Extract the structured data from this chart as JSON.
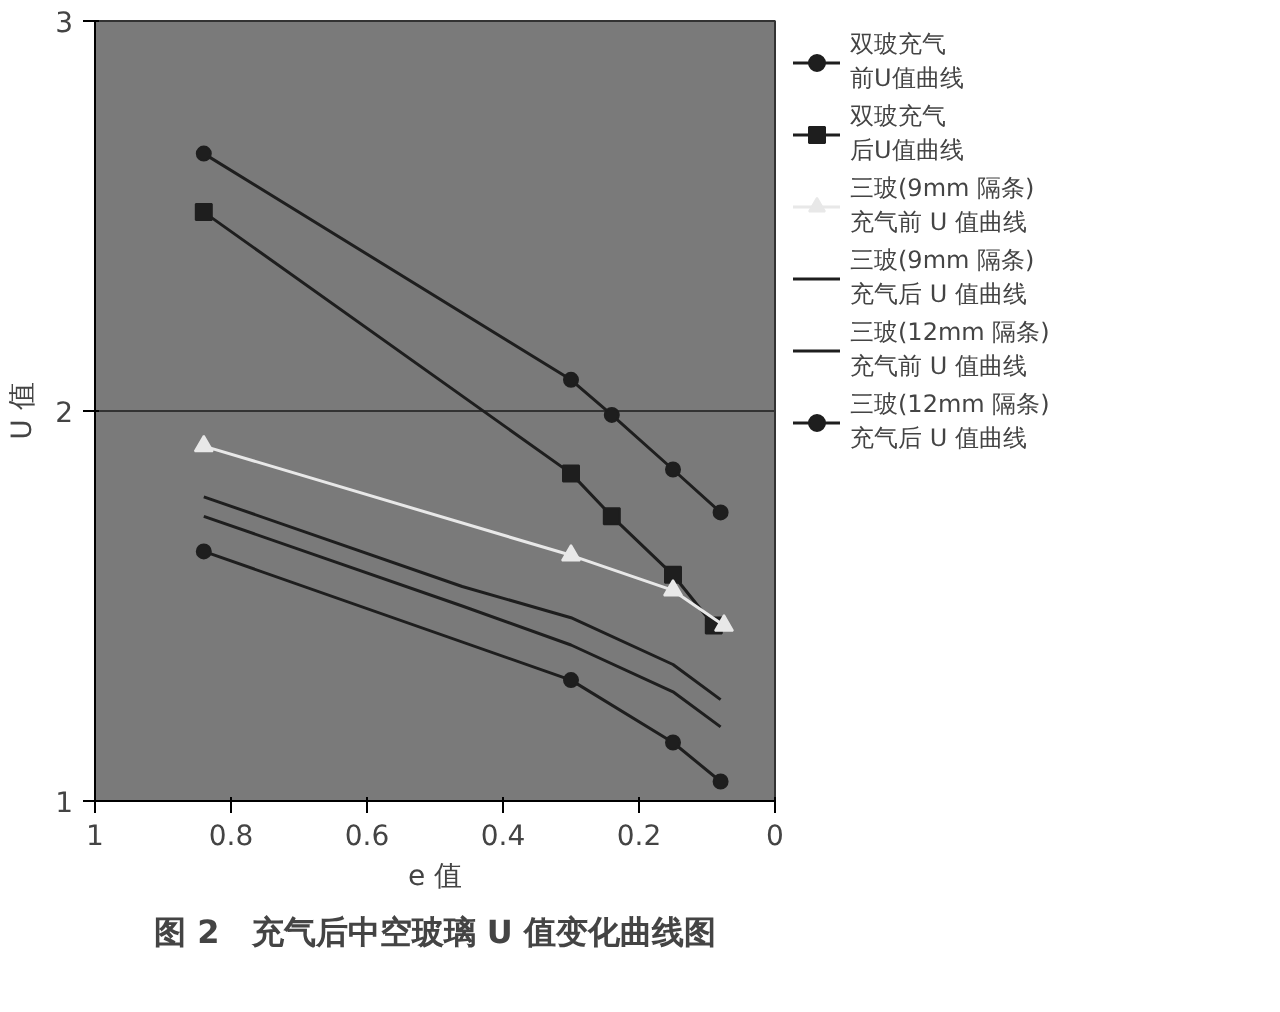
{
  "chart_data": {
    "type": "line",
    "title": "图 2　充气后中空玻璃 U 值变化曲线图",
    "xlabel": "e 值",
    "ylabel": "U 值",
    "xlim": [
      1,
      0
    ],
    "xticks": [
      1,
      0.8,
      0.6,
      0.4,
      0.2,
      0
    ],
    "ylim": [
      1,
      3
    ],
    "yticks": [
      1,
      2,
      3
    ],
    "grid": "y",
    "legend": "right",
    "series": [
      {
        "name": "双玻充气前U值曲线",
        "color": "#1e1e1e",
        "marker": "circle",
        "x": [
          0.84,
          0.3,
          0.24,
          0.15,
          0.08
        ],
        "values": [
          2.66,
          2.08,
          1.99,
          1.85,
          1.74
        ]
      },
      {
        "name": "双玻充气后U值曲线",
        "color": "#1e1e1e",
        "marker": "square",
        "x": [
          0.84,
          0.3,
          0.24,
          0.15,
          0.09
        ],
        "values": [
          2.51,
          1.84,
          1.73,
          1.58,
          1.45
        ]
      },
      {
        "name": "三玻(9mm 隔条)充气前 U 值曲线",
        "color": "#e8e8e8",
        "marker": "triangle",
        "x": [
          0.84,
          0.3,
          0.15,
          0.075
        ],
        "values": [
          1.91,
          1.63,
          1.54,
          1.45
        ]
      },
      {
        "name": "三玻(9mm 隔条)充气后 U 值曲线",
        "color": "#1e1e1e",
        "marker": "none",
        "x": [
          0.84,
          0.46,
          0.3,
          0.15,
          0.08
        ],
        "values": [
          1.78,
          1.55,
          1.47,
          1.35,
          1.26
        ]
      },
      {
        "name": "三玻(12mm 隔条)充气前 U 值曲线",
        "color": "#1e1e1e",
        "marker": "none",
        "x": [
          0.84,
          0.46,
          0.3,
          0.15,
          0.08
        ],
        "values": [
          1.73,
          1.5,
          1.4,
          1.28,
          1.19
        ]
      },
      {
        "name": "三玻(12mm 隔条)充气后 U 值曲线",
        "color": "#1e1e1e",
        "marker": "circle",
        "x": [
          0.84,
          0.3,
          0.15,
          0.08
        ],
        "values": [
          1.64,
          1.31,
          1.15,
          1.05
        ]
      }
    ]
  }
}
